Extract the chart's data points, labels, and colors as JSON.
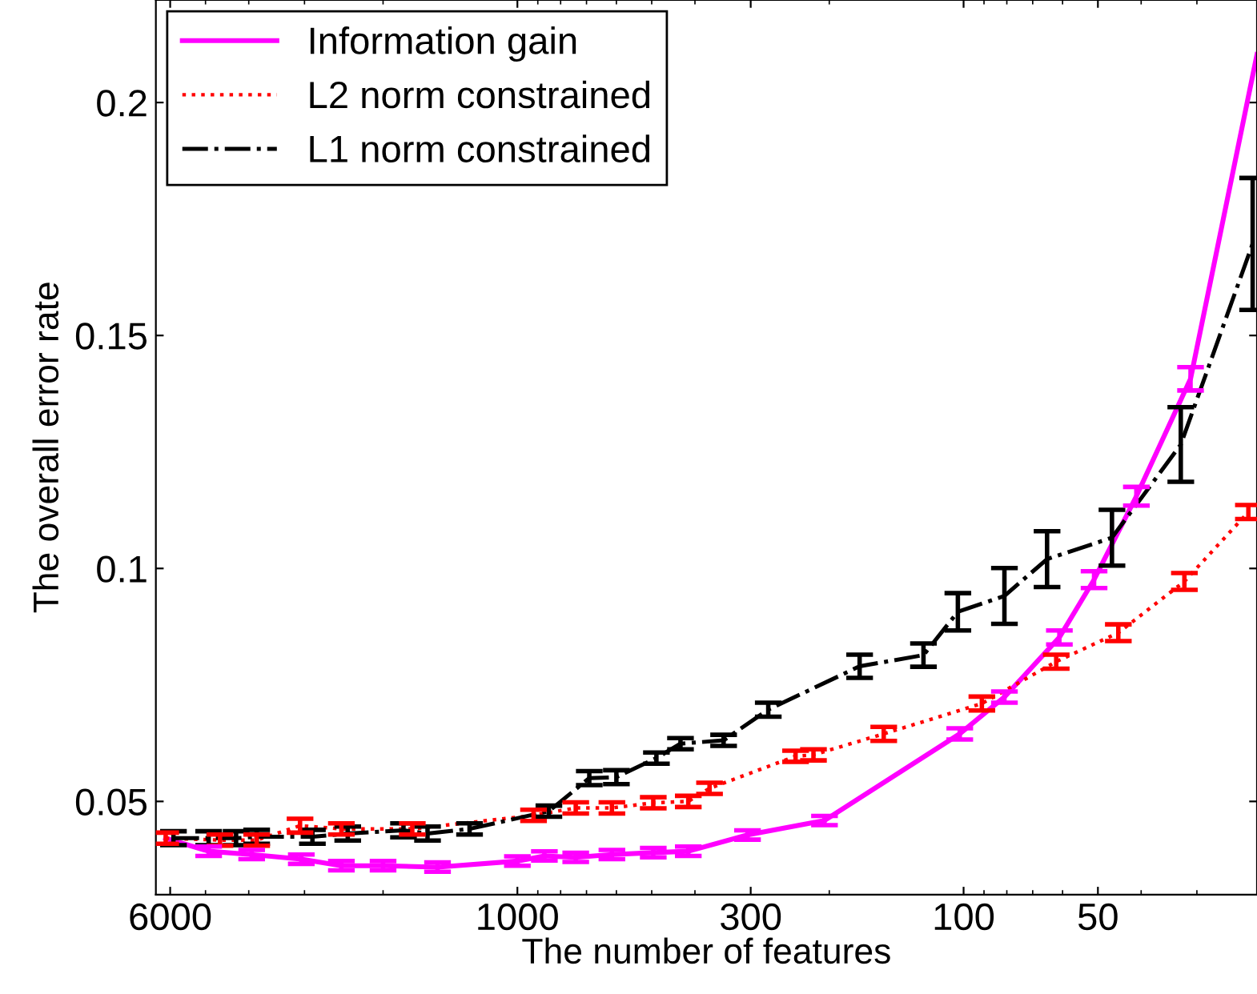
{
  "chart_data": {
    "type": "line",
    "xlabel": "The number of features",
    "ylabel": "The overall error rate",
    "log": "x",
    "xlim": [
      6460,
      22
    ],
    "xticks": [
      6000,
      1000,
      300,
      100,
      50
    ],
    "ylim": [
      0.03,
      0.222
    ],
    "yticks": [
      0.05,
      0.1,
      0.15,
      0.2
    ],
    "legend": "top left",
    "marker": "none",
    "series": [
      {
        "name": "Information gain",
        "color": "#ff00ff",
        "line_style": "solid",
        "x": [
          6140,
          4920,
          3940,
          3050,
          2480,
          2000,
          1510,
          1000,
          870,
          740,
          614,
          496,
          414,
          305,
          205,
          102,
          81,
          61,
          51,
          41,
          31,
          22
        ],
        "values": [
          0.0421,
          0.0393,
          0.0386,
          0.0376,
          0.0362,
          0.0362,
          0.0359,
          0.0372,
          0.0383,
          0.038,
          0.0386,
          0.039,
          0.0393,
          0.0428,
          0.0459,
          0.0645,
          0.0724,
          0.0852,
          0.0976,
          0.1155,
          0.1407,
          0.2103
        ],
        "errors": [
          null,
          0.001,
          0.001,
          0.001,
          0.001,
          0.001,
          0.001,
          0.001,
          0.001,
          0.001,
          0.001,
          0.001,
          0.001,
          0.001,
          0.001,
          0.0012,
          0.0012,
          0.0015,
          0.0018,
          0.002,
          0.0025,
          null
        ]
      },
      {
        "name": "L2 norm constrained",
        "color": "#ff0000",
        "line_style": "dotted",
        "x": [
          6140,
          4640,
          3840,
          3070,
          2480,
          1720,
          920,
          740,
          614,
          496,
          414,
          371,
          238,
          217,
          151,
          91,
          62,
          45,
          32,
          23
        ],
        "values": [
          0.0421,
          0.0417,
          0.0417,
          0.0448,
          0.0441,
          0.0441,
          0.047,
          0.0486,
          0.0486,
          0.0497,
          0.05,
          0.0528,
          0.0597,
          0.06,
          0.0645,
          0.071,
          0.08,
          0.0862,
          0.0972,
          0.1121
        ],
        "errors": [
          0.0012,
          0.0012,
          0.0012,
          0.0015,
          0.0012,
          0.0012,
          0.0012,
          0.0012,
          0.0012,
          0.0012,
          0.0012,
          0.0012,
          0.0012,
          0.0012,
          0.0015,
          0.0015,
          0.0015,
          0.0018,
          0.0018,
          0.0015
        ]
      },
      {
        "name": "L1 norm constrained",
        "color": "#000000",
        "line_style": "dashdot",
        "x": [
          5900,
          4920,
          4270,
          3840,
          2880,
          2400,
          1800,
          1590,
          1280,
          850,
          690,
          600,
          488,
          431,
          345,
          274,
          171,
          123,
          103,
          81,
          65,
          46.5,
          32.6,
          22.5
        ],
        "values": [
          0.0421,
          0.0421,
          0.0421,
          0.0424,
          0.0424,
          0.0431,
          0.0438,
          0.0431,
          0.0441,
          0.0479,
          0.055,
          0.0552,
          0.0593,
          0.0624,
          0.0631,
          0.0697,
          0.079,
          0.0814,
          0.0907,
          0.0941,
          0.102,
          0.1066,
          0.1266,
          0.1697
        ],
        "errors": [
          0.0015,
          0.0015,
          0.0015,
          0.0015,
          0.0015,
          0.0015,
          0.0015,
          0.0015,
          0.0012,
          0.0012,
          0.0015,
          0.0015,
          0.0012,
          0.0012,
          0.0012,
          0.0015,
          0.0025,
          0.0025,
          0.004,
          0.006,
          0.006,
          0.006,
          0.008,
          [
            0.1555,
            0.1838
          ]
        ]
      }
    ]
  }
}
